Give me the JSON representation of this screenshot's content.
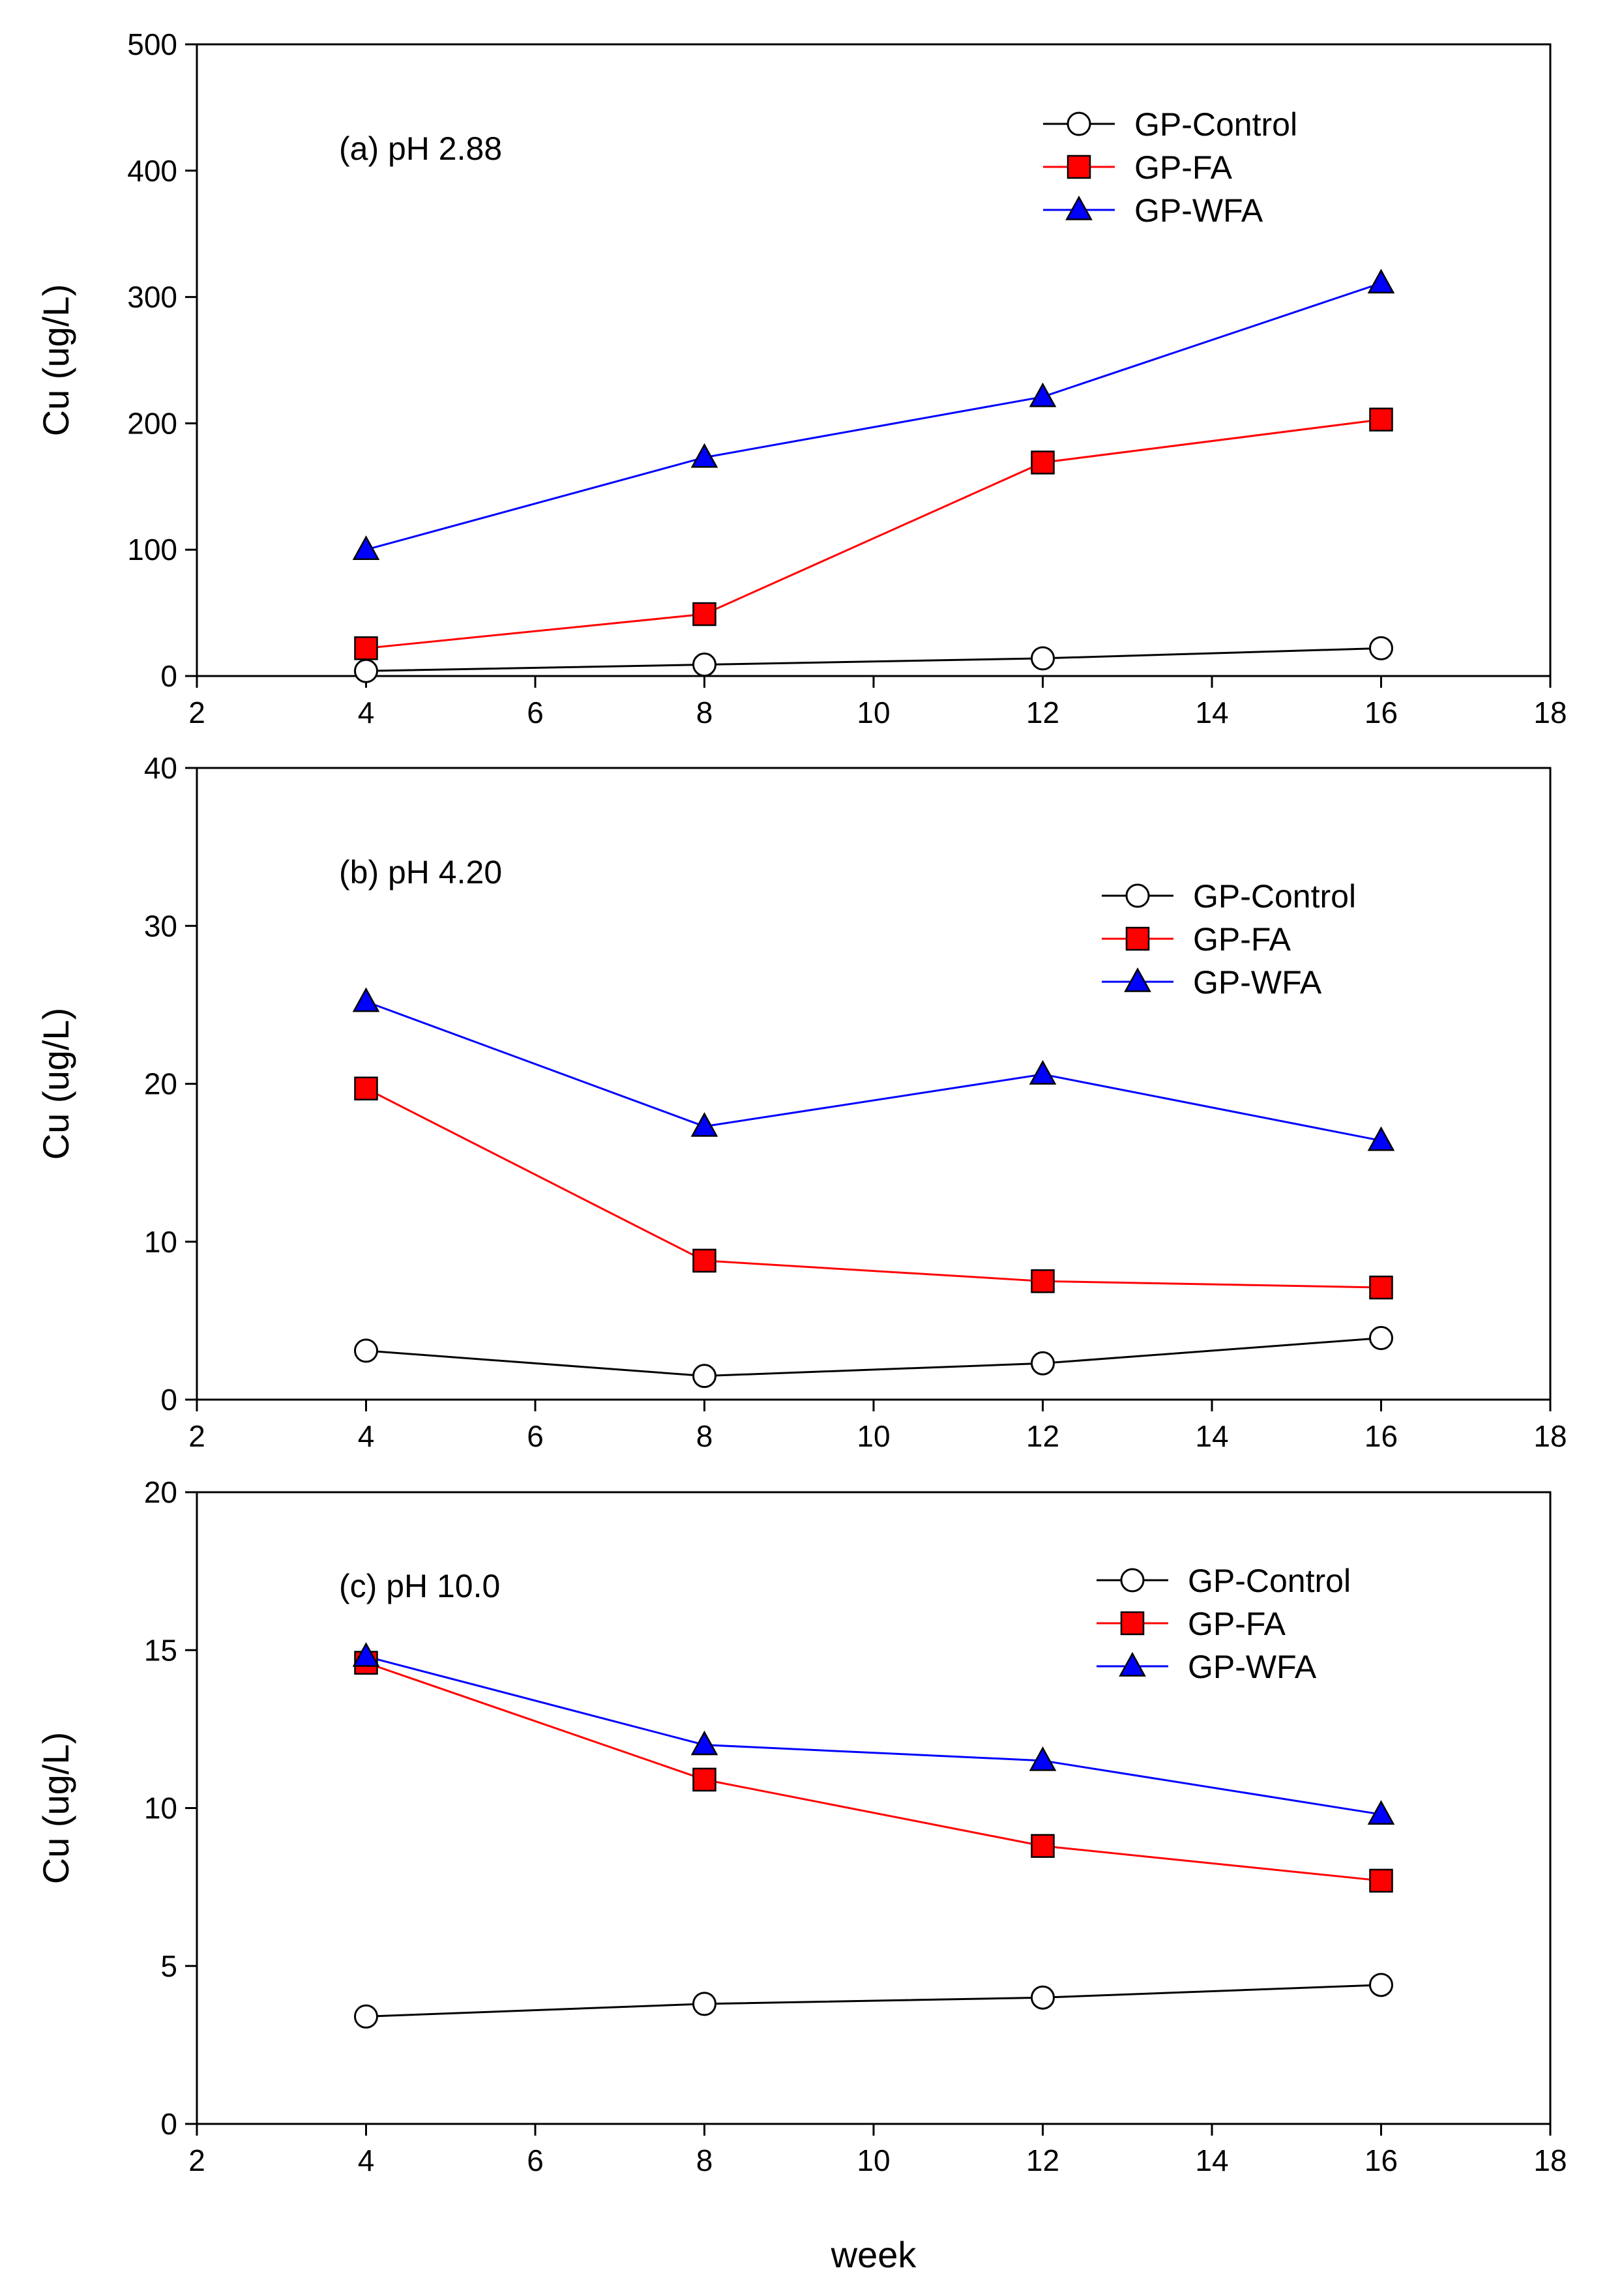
{
  "chart_data": [
    {
      "type": "line",
      "annotation": "(a) pH 2.88",
      "xlabel": "",
      "ylabel": "Cu (ug/L)",
      "xlim": [
        2,
        18
      ],
      "ylim": [
        0,
        500
      ],
      "xticks": [
        2,
        4,
        6,
        8,
        10,
        12,
        14,
        16,
        18
      ],
      "yticks": [
        0,
        100,
        200,
        300,
        400,
        500
      ],
      "x": [
        4,
        8,
        12,
        16
      ],
      "legend_position": "top-right",
      "series": [
        {
          "name": "GP-Control",
          "marker": "circle",
          "color": "#000000",
          "fill": "#ffffff",
          "values": [
            4,
            9,
            14,
            22
          ]
        },
        {
          "name": "GP-FA",
          "marker": "square",
          "color": "#ff0000",
          "fill": "#ff0000",
          "values": [
            22,
            49,
            169,
            203
          ]
        },
        {
          "name": "GP-WFA",
          "marker": "triangle",
          "color": "#0000ff",
          "fill": "#0000ff",
          "values": [
            100,
            173,
            221,
            311
          ]
        }
      ]
    },
    {
      "type": "line",
      "annotation": "(b) pH 4.20",
      "xlabel": "",
      "ylabel": "Cu (ug/L)",
      "xlim": [
        2,
        18
      ],
      "ylim": [
        0,
        40
      ],
      "xticks": [
        2,
        4,
        6,
        8,
        10,
        12,
        14,
        16,
        18
      ],
      "yticks": [
        0,
        10,
        20,
        30,
        40
      ],
      "x": [
        4,
        8,
        12,
        16
      ],
      "legend_position": "top-right",
      "series": [
        {
          "name": "GP-Control",
          "marker": "circle",
          "color": "#000000",
          "fill": "#ffffff",
          "values": [
            3.1,
            1.5,
            2.3,
            3.9
          ]
        },
        {
          "name": "GP-FA",
          "marker": "square",
          "color": "#ff0000",
          "fill": "#ff0000",
          "values": [
            19.7,
            8.8,
            7.5,
            7.1
          ]
        },
        {
          "name": "GP-WFA",
          "marker": "triangle",
          "color": "#0000ff",
          "fill": "#0000ff",
          "values": [
            25.2,
            17.3,
            20.6,
            16.4
          ]
        }
      ]
    },
    {
      "type": "line",
      "annotation": "(c) pH 10.0",
      "xlabel": "week",
      "ylabel": "Cu (ug/L)",
      "xlim": [
        2,
        18
      ],
      "ylim": [
        0,
        20
      ],
      "xticks": [
        2,
        4,
        6,
        8,
        10,
        12,
        14,
        16,
        18
      ],
      "yticks": [
        0,
        5,
        10,
        15,
        20
      ],
      "x": [
        4,
        8,
        12,
        16
      ],
      "legend_position": "top-right",
      "series": [
        {
          "name": "GP-Control",
          "marker": "circle",
          "color": "#000000",
          "fill": "#ffffff",
          "values": [
            3.4,
            3.8,
            4.0,
            4.4
          ]
        },
        {
          "name": "GP-FA",
          "marker": "square",
          "color": "#ff0000",
          "fill": "#ff0000",
          "values": [
            14.6,
            10.9,
            8.8,
            7.7
          ]
        },
        {
          "name": "GP-WFA",
          "marker": "triangle",
          "color": "#0000ff",
          "fill": "#0000ff",
          "values": [
            14.8,
            12.0,
            11.5,
            9.8
          ]
        }
      ]
    }
  ]
}
